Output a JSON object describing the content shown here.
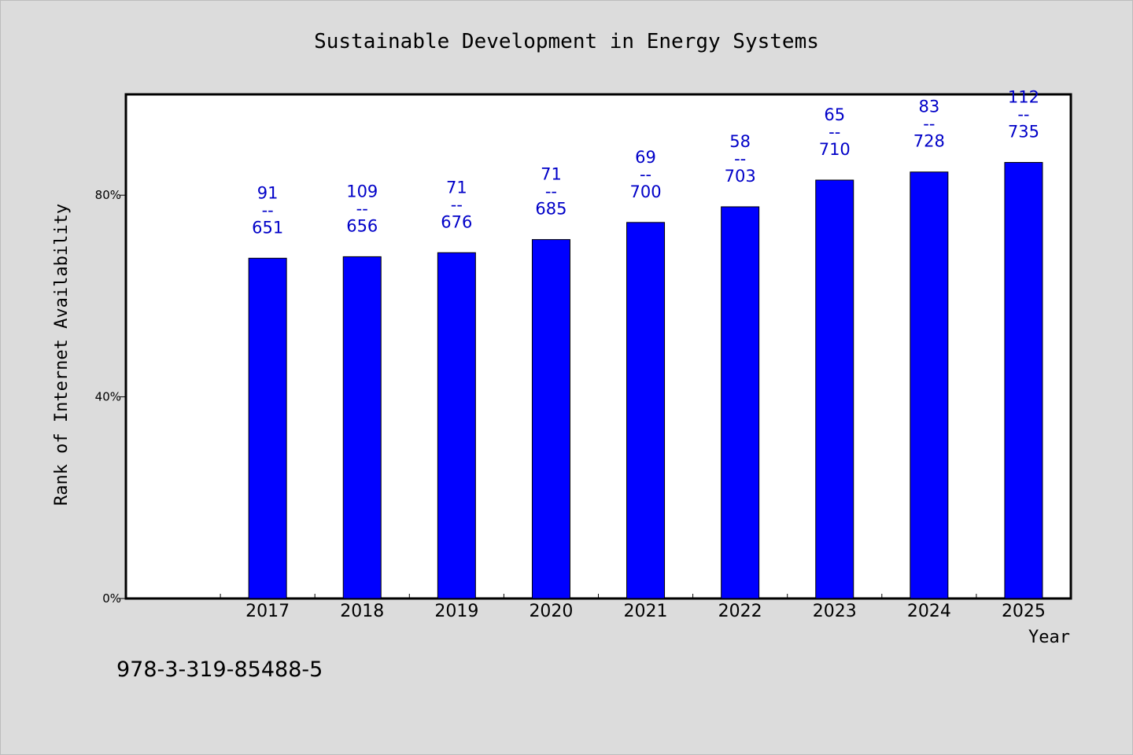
{
  "footer": {
    "isbn": "978-3-319-85488-5"
  },
  "chart_data": {
    "type": "bar",
    "title": "Sustainable Development in Energy Systems",
    "xlabel": "Year",
    "ylabel": "Rank of Internet Availability",
    "categories": [
      "2017",
      "2018",
      "2019",
      "2020",
      "2021",
      "2022",
      "2023",
      "2024",
      "2025"
    ],
    "series": [
      {
        "values": [
          67.5,
          67.8,
          68.6,
          71.2,
          74.6,
          77.7,
          83.0,
          84.6,
          86.5
        ]
      }
    ],
    "data_labels": [
      [
        "91",
        "--",
        "651"
      ],
      [
        "109",
        "--",
        "656"
      ],
      [
        "71",
        "--",
        "676"
      ],
      [
        "71",
        "--",
        "685"
      ],
      [
        "69",
        "--",
        "700"
      ],
      [
        "58",
        "--",
        "703"
      ],
      [
        "65",
        "--",
        "710"
      ],
      [
        "83",
        "--",
        "728"
      ],
      [
        "112",
        "--",
        "735"
      ]
    ],
    "ylim": [
      0,
      100
    ],
    "yticks": [
      {
        "value": 0,
        "label": "0%"
      },
      {
        "value": 40,
        "label": "40%"
      },
      {
        "value": 80,
        "label": "80%"
      }
    ],
    "grid": false,
    "legend": "none",
    "colors": {
      "bar": "#0000ff",
      "label": "#0000c8",
      "plot_background": "#ffffff",
      "page_background": "#dcdcdc"
    }
  }
}
